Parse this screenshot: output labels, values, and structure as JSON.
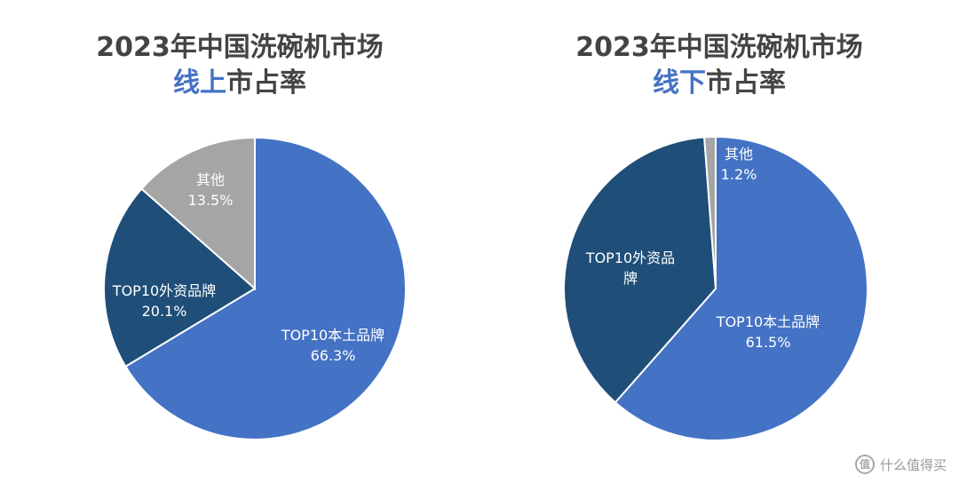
{
  "chart_data": [
    {
      "type": "pie",
      "title_line1": "2023年中国洗碗机市场",
      "title_accent": "线上",
      "title_rest": "市占率",
      "slices": [
        {
          "label": "TOP10本土品牌",
          "value": 66.3,
          "value_label": "66.3%",
          "color": "#4472c4"
        },
        {
          "label": "TOP10外资品牌",
          "value": 20.1,
          "value_label": "20.1%",
          "color": "#1f4e79"
        },
        {
          "label": "其他",
          "value": 13.5,
          "value_label": "13.5%",
          "color": "#a5a5a5"
        }
      ]
    },
    {
      "type": "pie",
      "title_line1": "2023年中国洗碗机市场",
      "title_accent": "线下",
      "title_rest": "市占率",
      "slices": [
        {
          "label": "TOP10本土品牌",
          "value": 61.5,
          "value_label": "61.5%",
          "color": "#4472c4"
        },
        {
          "label": "TOP10外资品牌",
          "value": 37.3,
          "value_label": "",
          "color": "#1f4e79"
        },
        {
          "label": "其他",
          "value": 1.2,
          "value_label": "1.2%",
          "color": "#a5a5a5"
        }
      ]
    }
  ],
  "watermark": {
    "icon": "值",
    "text": "什么值得买"
  },
  "colors": {
    "accent": "#4472c4",
    "title": "#444444"
  }
}
